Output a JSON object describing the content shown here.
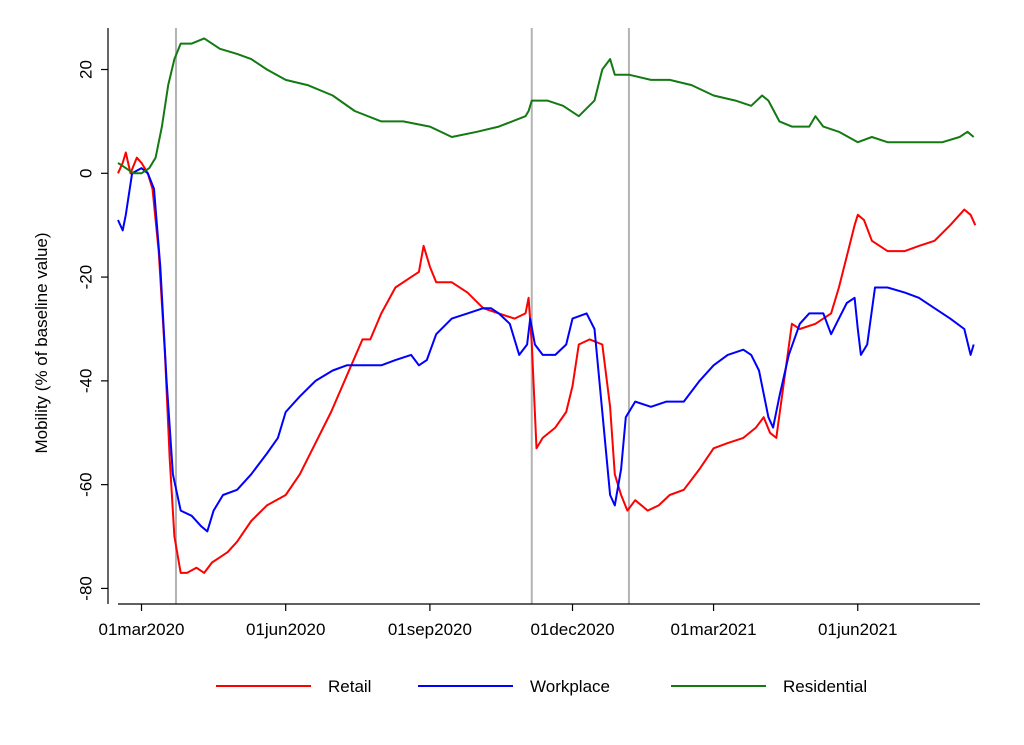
{
  "chart_data": {
    "type": "line",
    "title": "",
    "xlabel": "",
    "ylabel": "Mobility (% of baseline value)",
    "xlim": [
      "2020-02-15",
      "2021-08-18"
    ],
    "ylim": [
      -83,
      28
    ],
    "grid": false,
    "legend_position": "bottom",
    "x_ticks": [
      {
        "date": "2020-03-01",
        "label": "01mar2020"
      },
      {
        "date": "2020-06-01",
        "label": "01jun2020"
      },
      {
        "date": "2020-09-01",
        "label": "01sep2020"
      },
      {
        "date": "2020-12-01",
        "label": "01dec2020"
      },
      {
        "date": "2021-03-01",
        "label": "01mar2021"
      },
      {
        "date": "2021-06-01",
        "label": "01jun2021"
      }
    ],
    "y_ticks": [
      {
        "value": 20,
        "label": "20"
      },
      {
        "value": 0,
        "label": "0"
      },
      {
        "value": -20,
        "label": "-20"
      },
      {
        "value": -40,
        "label": "-40"
      },
      {
        "value": -60,
        "label": "-60"
      },
      {
        "value": -80,
        "label": "-80"
      }
    ],
    "vlines": [
      "2020-03-23",
      "2020-11-05",
      "2021-01-06"
    ],
    "vline_color": "#b3b3b3",
    "series": [
      {
        "name": "Retail",
        "color": "#ff0000",
        "points": [
          [
            "2020-02-15",
            0
          ],
          [
            "2020-02-18",
            2
          ],
          [
            "2020-02-20",
            4
          ],
          [
            "2020-02-23",
            0
          ],
          [
            "2020-02-27",
            3
          ],
          [
            "2020-03-01",
            2
          ],
          [
            "2020-03-05",
            0
          ],
          [
            "2020-03-08",
            -3
          ],
          [
            "2020-03-12",
            -15
          ],
          [
            "2020-03-16",
            -35
          ],
          [
            "2020-03-19",
            -55
          ],
          [
            "2020-03-22",
            -70
          ],
          [
            "2020-03-26",
            -77
          ],
          [
            "2020-03-30",
            -77
          ],
          [
            "2020-04-05",
            -76
          ],
          [
            "2020-04-10",
            -77
          ],
          [
            "2020-04-15",
            -75
          ],
          [
            "2020-04-20",
            -74
          ],
          [
            "2020-04-25",
            -73
          ],
          [
            "2020-05-01",
            -71
          ],
          [
            "2020-05-10",
            -67
          ],
          [
            "2020-05-20",
            -64
          ],
          [
            "2020-06-01",
            -62
          ],
          [
            "2020-06-10",
            -58
          ],
          [
            "2020-06-20",
            -52
          ],
          [
            "2020-06-30",
            -46
          ],
          [
            "2020-07-10",
            -39
          ],
          [
            "2020-07-20",
            -32
          ],
          [
            "2020-07-25",
            -32
          ],
          [
            "2020-08-01",
            -27
          ],
          [
            "2020-08-10",
            -22
          ],
          [
            "2020-08-20",
            -20
          ],
          [
            "2020-08-25",
            -19
          ],
          [
            "2020-08-28",
            -14
          ],
          [
            "2020-09-01",
            -18
          ],
          [
            "2020-09-05",
            -21
          ],
          [
            "2020-09-15",
            -21
          ],
          [
            "2020-09-25",
            -23
          ],
          [
            "2020-10-05",
            -26
          ],
          [
            "2020-10-15",
            -27
          ],
          [
            "2020-10-25",
            -28
          ],
          [
            "2020-11-01",
            -27
          ],
          [
            "2020-11-03",
            -24
          ],
          [
            "2020-11-05",
            -33
          ],
          [
            "2020-11-08",
            -53
          ],
          [
            "2020-11-12",
            -51
          ],
          [
            "2020-11-20",
            -49
          ],
          [
            "2020-11-27",
            -46
          ],
          [
            "2020-12-01",
            -41
          ],
          [
            "2020-12-05",
            -33
          ],
          [
            "2020-12-12",
            -32
          ],
          [
            "2020-12-20",
            -33
          ],
          [
            "2020-12-25",
            -45
          ],
          [
            "2020-12-28",
            -58
          ],
          [
            "2021-01-01",
            -62
          ],
          [
            "2021-01-05",
            -65
          ],
          [
            "2021-01-10",
            -63
          ],
          [
            "2021-01-18",
            -65
          ],
          [
            "2021-01-25",
            -64
          ],
          [
            "2021-02-01",
            -62
          ],
          [
            "2021-02-10",
            -61
          ],
          [
            "2021-02-20",
            -57
          ],
          [
            "2021-03-01",
            -53
          ],
          [
            "2021-03-10",
            -52
          ],
          [
            "2021-03-20",
            -51
          ],
          [
            "2021-03-28",
            -49
          ],
          [
            "2021-04-02",
            -47
          ],
          [
            "2021-04-06",
            -50
          ],
          [
            "2021-04-10",
            -51
          ],
          [
            "2021-04-15",
            -40
          ],
          [
            "2021-04-20",
            -29
          ],
          [
            "2021-04-25",
            -30
          ],
          [
            "2021-05-05",
            -29
          ],
          [
            "2021-05-15",
            -27
          ],
          [
            "2021-05-20",
            -22
          ],
          [
            "2021-05-25",
            -16
          ],
          [
            "2021-05-30",
            -10
          ],
          [
            "2021-06-01",
            -8
          ],
          [
            "2021-06-05",
            -9
          ],
          [
            "2021-06-10",
            -13
          ],
          [
            "2021-06-20",
            -15
          ],
          [
            "2021-07-01",
            -15
          ],
          [
            "2021-07-10",
            -14
          ],
          [
            "2021-07-20",
            -13
          ],
          [
            "2021-07-30",
            -10
          ],
          [
            "2021-08-08",
            -7
          ],
          [
            "2021-08-12",
            -8
          ],
          [
            "2021-08-15",
            -10
          ]
        ]
      },
      {
        "name": "Workplace",
        "color": "#0000ff",
        "points": [
          [
            "2020-02-15",
            -9
          ],
          [
            "2020-02-18",
            -11
          ],
          [
            "2020-02-20",
            -8
          ],
          [
            "2020-02-24",
            0
          ],
          [
            "2020-03-01",
            1
          ],
          [
            "2020-03-05",
            0
          ],
          [
            "2020-03-09",
            -3
          ],
          [
            "2020-03-13",
            -18
          ],
          [
            "2020-03-17",
            -40
          ],
          [
            "2020-03-21",
            -58
          ],
          [
            "2020-03-26",
            -65
          ],
          [
            "2020-04-02",
            -66
          ],
          [
            "2020-04-08",
            -68
          ],
          [
            "2020-04-12",
            -69
          ],
          [
            "2020-04-16",
            -65
          ],
          [
            "2020-04-22",
            -62
          ],
          [
            "2020-05-01",
            -61
          ],
          [
            "2020-05-10",
            -58
          ],
          [
            "2020-05-20",
            -54
          ],
          [
            "2020-05-27",
            -51
          ],
          [
            "2020-06-01",
            -46
          ],
          [
            "2020-06-10",
            -43
          ],
          [
            "2020-06-20",
            -40
          ],
          [
            "2020-07-01",
            -38
          ],
          [
            "2020-07-10",
            -37
          ],
          [
            "2020-07-20",
            -37
          ],
          [
            "2020-08-01",
            -37
          ],
          [
            "2020-08-10",
            -36
          ],
          [
            "2020-08-20",
            -35
          ],
          [
            "2020-08-25",
            -37
          ],
          [
            "2020-08-30",
            -36
          ],
          [
            "2020-09-05",
            -31
          ],
          [
            "2020-09-15",
            -28
          ],
          [
            "2020-09-25",
            -27
          ],
          [
            "2020-10-05",
            -26
          ],
          [
            "2020-10-10",
            -26
          ],
          [
            "2020-10-15",
            -27
          ],
          [
            "2020-10-22",
            -29
          ],
          [
            "2020-10-28",
            -35
          ],
          [
            "2020-11-02",
            -33
          ],
          [
            "2020-11-04",
            -28
          ],
          [
            "2020-11-07",
            -33
          ],
          [
            "2020-11-12",
            -35
          ],
          [
            "2020-11-20",
            -35
          ],
          [
            "2020-11-27",
            -33
          ],
          [
            "2020-12-01",
            -28
          ],
          [
            "2020-12-10",
            -27
          ],
          [
            "2020-12-15",
            -30
          ],
          [
            "2020-12-20",
            -46
          ],
          [
            "2020-12-25",
            -62
          ],
          [
            "2020-12-28",
            -64
          ],
          [
            "2021-01-01",
            -57
          ],
          [
            "2021-01-04",
            -47
          ],
          [
            "2021-01-10",
            -44
          ],
          [
            "2021-01-20",
            -45
          ],
          [
            "2021-01-30",
            -44
          ],
          [
            "2021-02-10",
            -44
          ],
          [
            "2021-02-20",
            -40
          ],
          [
            "2021-03-01",
            -37
          ],
          [
            "2021-03-10",
            -35
          ],
          [
            "2021-03-20",
            -34
          ],
          [
            "2021-03-25",
            -35
          ],
          [
            "2021-03-30",
            -38
          ],
          [
            "2021-04-05",
            -47
          ],
          [
            "2021-04-08",
            -49
          ],
          [
            "2021-04-12",
            -43
          ],
          [
            "2021-04-18",
            -35
          ],
          [
            "2021-04-25",
            -29
          ],
          [
            "2021-05-01",
            -27
          ],
          [
            "2021-05-10",
            -27
          ],
          [
            "2021-05-15",
            -31
          ],
          [
            "2021-05-20",
            -28
          ],
          [
            "2021-05-25",
            -25
          ],
          [
            "2021-05-30",
            -24
          ],
          [
            "2021-06-01",
            -30
          ],
          [
            "2021-06-03",
            -35
          ],
          [
            "2021-06-07",
            -33
          ],
          [
            "2021-06-12",
            -22
          ],
          [
            "2021-06-20",
            -22
          ],
          [
            "2021-07-01",
            -23
          ],
          [
            "2021-07-10",
            -24
          ],
          [
            "2021-07-20",
            -26
          ],
          [
            "2021-07-30",
            -28
          ],
          [
            "2021-08-08",
            -30
          ],
          [
            "2021-08-12",
            -35
          ],
          [
            "2021-08-14",
            -33
          ]
        ]
      },
      {
        "name": "Residential",
        "color": "#137a13",
        "points": [
          [
            "2020-02-15",
            2
          ],
          [
            "2020-02-20",
            1
          ],
          [
            "2020-02-25",
            0
          ],
          [
            "2020-03-01",
            0
          ],
          [
            "2020-03-06",
            1
          ],
          [
            "2020-03-10",
            3
          ],
          [
            "2020-03-14",
            9
          ],
          [
            "2020-03-18",
            17
          ],
          [
            "2020-03-22",
            22
          ],
          [
            "2020-03-26",
            25
          ],
          [
            "2020-04-02",
            25
          ],
          [
            "2020-04-10",
            26
          ],
          [
            "2020-04-20",
            24
          ],
          [
            "2020-05-01",
            23
          ],
          [
            "2020-05-10",
            22
          ],
          [
            "2020-05-20",
            20
          ],
          [
            "2020-06-01",
            18
          ],
          [
            "2020-06-15",
            17
          ],
          [
            "2020-07-01",
            15
          ],
          [
            "2020-07-15",
            12
          ],
          [
            "2020-08-01",
            10
          ],
          [
            "2020-08-15",
            10
          ],
          [
            "2020-09-01",
            9
          ],
          [
            "2020-09-15",
            7
          ],
          [
            "2020-10-01",
            8
          ],
          [
            "2020-10-15",
            9
          ],
          [
            "2020-11-01",
            11
          ],
          [
            "2020-11-03",
            12
          ],
          [
            "2020-11-05",
            14
          ],
          [
            "2020-11-15",
            14
          ],
          [
            "2020-11-25",
            13
          ],
          [
            "2020-12-05",
            11
          ],
          [
            "2020-12-15",
            14
          ],
          [
            "2020-12-20",
            20
          ],
          [
            "2020-12-25",
            22
          ],
          [
            "2020-12-28",
            19
          ],
          [
            "2021-01-06",
            19
          ],
          [
            "2021-01-20",
            18
          ],
          [
            "2021-02-01",
            18
          ],
          [
            "2021-02-15",
            17
          ],
          [
            "2021-03-01",
            15
          ],
          [
            "2021-03-15",
            14
          ],
          [
            "2021-03-25",
            13
          ],
          [
            "2021-04-01",
            15
          ],
          [
            "2021-04-05",
            14
          ],
          [
            "2021-04-12",
            10
          ],
          [
            "2021-04-20",
            9
          ],
          [
            "2021-05-01",
            9
          ],
          [
            "2021-05-05",
            11
          ],
          [
            "2021-05-10",
            9
          ],
          [
            "2021-05-20",
            8
          ],
          [
            "2021-06-01",
            6
          ],
          [
            "2021-06-10",
            7
          ],
          [
            "2021-06-20",
            6
          ],
          [
            "2021-07-01",
            6
          ],
          [
            "2021-07-15",
            6
          ],
          [
            "2021-07-25",
            6
          ],
          [
            "2021-08-05",
            7
          ],
          [
            "2021-08-10",
            8
          ],
          [
            "2021-08-14",
            7
          ]
        ]
      }
    ]
  }
}
